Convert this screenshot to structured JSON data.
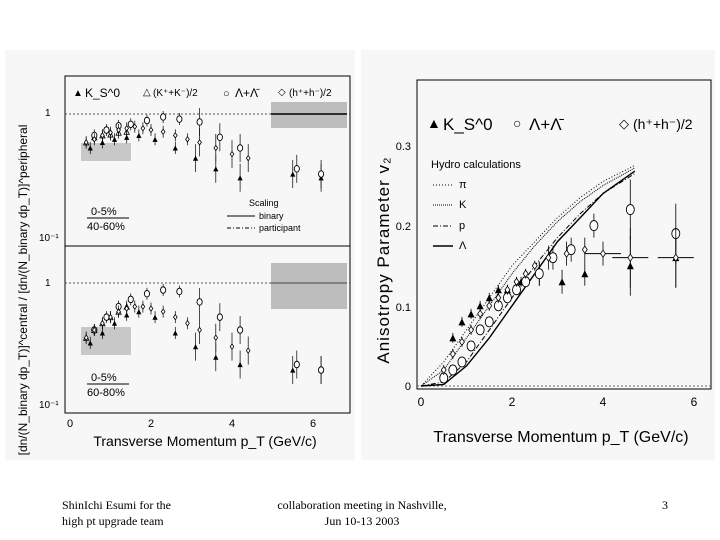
{
  "slide": {
    "footer_left": [
      "ShinIchi Esumi for the",
      "high pt upgrade team"
    ],
    "footer_center": [
      "collaboration meeting in Nashville,",
      "Jun 10-13 2003"
    ],
    "page_number": "3"
  },
  "left_figure": {
    "y_axis_title": "[dn/(N_binary dp_T)]^central / [dn/(N_binary dp_T)]^peripheral",
    "legend_species": [
      "K_S^0",
      "(K⁺+K⁻)/2",
      "Λ+Λ̄",
      "(h⁺+h⁻)/2"
    ],
    "scaling_legend": {
      "title": "Scaling",
      "binary": "binary",
      "participant": "participant"
    },
    "top_panel_label": [
      "0-5%",
      "40-60%"
    ],
    "bottom_panel_label": [
      "0-5%",
      "60-80%"
    ],
    "x_axis_title": "Transverse Momentum p_T (GeV/c)",
    "x_ticks": [
      "0",
      "2",
      "4",
      "6"
    ],
    "y_ticks": [
      "1",
      "10⁻¹"
    ]
  },
  "right_figure": {
    "y_axis_title": "Anisotropy Parameter v₂",
    "legend_species": [
      "K_S^0",
      "Λ+Λ̄",
      "(h⁺+h⁻)/2"
    ],
    "hydro_title": "Hydro calculations",
    "hydro_items": [
      "π",
      "K",
      "p",
      "Λ"
    ],
    "x_axis_title": "Transverse Momentum p_T (GeV/c)",
    "x_ticks": [
      "0",
      "2",
      "4",
      "6"
    ],
    "y_ticks": [
      "0",
      "0.1",
      "0.2",
      "0.3"
    ]
  },
  "chart_data": [
    {
      "type": "scatter",
      "panel": "0-5% / 40-60%",
      "xlabel": "Transverse Momentum p_T (GeV/c)",
      "ylabel": "[dn/(N_binary dp_T)]^central / [dn/(N_binary dp_T)]^peripheral",
      "xlim": [
        0,
        7
      ],
      "ylim": [
        0.1,
        1.6
      ],
      "yscale": "log",
      "series": [
        {
          "name": "K_S^0",
          "x": [
            0.5,
            0.8,
            1.1,
            1.4,
            1.7,
            2.1,
            2.6,
            3.1,
            3.6,
            4.2,
            5.5,
            6.2
          ],
          "y": [
            0.5,
            0.55,
            0.58,
            0.6,
            0.62,
            0.58,
            0.5,
            0.42,
            0.35,
            0.3,
            0.32,
            0.3
          ]
        },
        {
          "name": "(K⁺+K⁻)/2",
          "x": [
            0.4,
            0.6,
            0.8,
            1.0,
            1.2,
            1.4
          ],
          "y": [
            0.55,
            0.6,
            0.62,
            0.63,
            0.65,
            0.66
          ]
        },
        {
          "name": "Λ+Λ̄",
          "x": [
            0.6,
            0.9,
            1.2,
            1.5,
            1.9,
            2.3,
            2.7,
            3.2,
            3.7,
            4.2,
            5.6,
            6.2
          ],
          "y": [
            0.62,
            0.68,
            0.73,
            0.75,
            0.8,
            0.85,
            0.82,
            0.78,
            0.6,
            0.5,
            0.35,
            0.32
          ]
        },
        {
          "name": "(h⁺+h⁻)/2",
          "x": [
            0.4,
            0.6,
            0.8,
            1.0,
            1.2,
            1.4,
            1.6,
            1.8,
            2.0,
            2.3,
            2.6,
            2.9,
            3.2,
            3.6,
            4.0,
            4.4
          ],
          "y": [
            0.55,
            0.58,
            0.62,
            0.65,
            0.68,
            0.7,
            0.72,
            0.7,
            0.68,
            0.66,
            0.62,
            0.58,
            0.55,
            0.5,
            0.45,
            0.42
          ]
        }
      ]
    },
    {
      "type": "scatter",
      "panel": "0-5% / 60-80%",
      "xlabel": "Transverse Momentum p_T (GeV/c)",
      "xlim": [
        0,
        7
      ],
      "ylim": [
        0.1,
        1.6
      ],
      "yscale": "log",
      "series": [
        {
          "name": "K_S^0",
          "x": [
            0.5,
            0.8,
            1.1,
            1.4,
            1.7,
            2.1,
            2.6,
            3.1,
            3.6,
            4.2,
            5.5,
            6.2
          ],
          "y": [
            0.32,
            0.38,
            0.45,
            0.52,
            0.55,
            0.5,
            0.38,
            0.3,
            0.25,
            0.22,
            0.2,
            0.2
          ]
        },
        {
          "name": "(K⁺+K⁻)/2",
          "x": [
            0.4,
            0.6,
            0.8,
            1.0,
            1.2,
            1.4
          ],
          "y": [
            0.35,
            0.4,
            0.45,
            0.5,
            0.55,
            0.6
          ]
        },
        {
          "name": "Λ+Λ̄",
          "x": [
            0.6,
            0.9,
            1.2,
            1.5,
            1.9,
            2.3,
            2.7,
            3.2,
            3.7,
            4.2,
            5.6,
            6.2
          ],
          "y": [
            0.4,
            0.5,
            0.6,
            0.68,
            0.75,
            0.8,
            0.78,
            0.65,
            0.5,
            0.4,
            0.22,
            0.2
          ]
        },
        {
          "name": "(h⁺+h⁻)/2",
          "x": [
            0.4,
            0.6,
            0.8,
            1.0,
            1.2,
            1.4,
            1.6,
            1.8,
            2.0,
            2.3,
            2.6,
            2.9,
            3.2,
            3.6,
            4.0,
            4.4
          ],
          "y": [
            0.35,
            0.4,
            0.45,
            0.5,
            0.55,
            0.58,
            0.6,
            0.6,
            0.58,
            0.55,
            0.5,
            0.45,
            0.4,
            0.35,
            0.3,
            0.28
          ]
        }
      ]
    },
    {
      "type": "scatter",
      "xlabel": "Transverse Momentum p_T (GeV/c)",
      "ylabel": "Anisotropy Parameter v₂",
      "xlim": [
        0,
        6.5
      ],
      "ylim": [
        -0.005,
        0.34
      ],
      "series": [
        {
          "name": "K_S^0",
          "x": [
            0.7,
            0.9,
            1.1,
            1.3,
            1.5,
            1.7,
            1.9,
            2.2,
            2.6,
            3.1,
            3.6,
            4.6,
            5.6
          ],
          "y": [
            0.06,
            0.08,
            0.09,
            0.1,
            0.11,
            0.12,
            0.12,
            0.13,
            0.14,
            0.13,
            0.14,
            0.15,
            0.16
          ]
        },
        {
          "name": "Λ+Λ̄",
          "x": [
            0.5,
            0.7,
            0.9,
            1.1,
            1.3,
            1.5,
            1.7,
            1.9,
            2.1,
            2.3,
            2.6,
            2.9,
            3.3,
            3.8,
            4.6,
            5.6
          ],
          "y": [
            0.01,
            0.02,
            0.03,
            0.05,
            0.07,
            0.08,
            0.1,
            0.11,
            0.12,
            0.13,
            0.14,
            0.16,
            0.17,
            0.2,
            0.22,
            0.19
          ]
        },
        {
          "name": "(h⁺+h⁻)/2",
          "x": [
            0.5,
            0.7,
            0.9,
            1.1,
            1.3,
            1.5,
            1.7,
            1.9,
            2.1,
            2.3,
            2.5,
            2.8,
            3.2,
            3.6,
            4.0,
            4.6,
            5.6
          ],
          "y": [
            0.02,
            0.04,
            0.055,
            0.07,
            0.09,
            0.1,
            0.11,
            0.12,
            0.13,
            0.14,
            0.15,
            0.16,
            0.165,
            0.17,
            0.165,
            0.16,
            0.16
          ]
        }
      ],
      "hydro_curves": [
        {
          "name": "π",
          "x": [
            0,
            0.5,
            1,
            1.5,
            2,
            2.5,
            3,
            3.5,
            4,
            4.7
          ],
          "y": [
            0,
            0.03,
            0.07,
            0.11,
            0.15,
            0.18,
            0.21,
            0.235,
            0.255,
            0.275
          ]
        },
        {
          "name": "K",
          "x": [
            0,
            0.5,
            1,
            1.5,
            2,
            2.5,
            3,
            3.5,
            4,
            4.7
          ],
          "y": [
            0,
            0.02,
            0.06,
            0.1,
            0.14,
            0.175,
            0.205,
            0.23,
            0.25,
            0.272
          ]
        },
        {
          "name": "p",
          "x": [
            0,
            0.5,
            1,
            1.5,
            2,
            2.5,
            3,
            3.5,
            4,
            4.7
          ],
          "y": [
            0,
            0.005,
            0.03,
            0.07,
            0.11,
            0.15,
            0.185,
            0.215,
            0.24,
            0.265
          ]
        },
        {
          "name": "Λ",
          "x": [
            0,
            0.5,
            1,
            1.5,
            2,
            2.5,
            3,
            3.5,
            4,
            4.7
          ],
          "y": [
            0,
            0.002,
            0.025,
            0.06,
            0.1,
            0.14,
            0.18,
            0.21,
            0.24,
            0.268
          ]
        }
      ]
    }
  ]
}
